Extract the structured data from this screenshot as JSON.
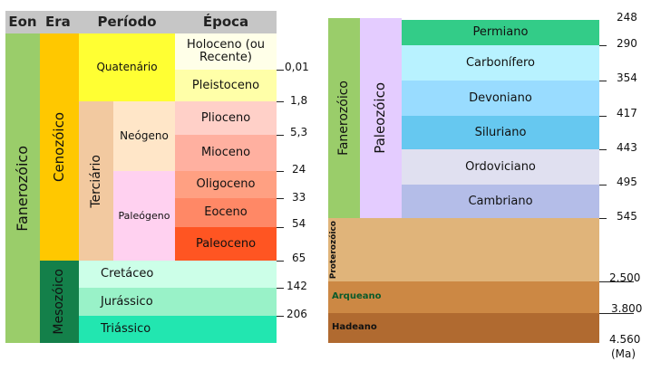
{
  "headers": {
    "eon": "Eon",
    "era": "Era",
    "period": "Período",
    "epoch": "Época"
  },
  "left": {
    "eon": "Fanerozóico",
    "era_cenozoic": "Cenozóico",
    "era_mesozoic": "Mesozóico",
    "quaternary": "Quatenário",
    "tertiary": "Terciário",
    "neogene": "Neógeno",
    "paleogene": "Paleógeno",
    "holocene": "Holoceno (ou Recente)",
    "pleistocene": "Pleistoceno",
    "pliocene": "Plioceno",
    "miocene": "Mioceno",
    "oligocene": "Oligoceno",
    "eocene": "Eoceno",
    "paleocene": "Paleoceno",
    "cretaceous": "Cretáceo",
    "jurassic": "Jurássico",
    "triassic": "Triássico"
  },
  "left_ages": [
    "0,01",
    "1,8",
    "5,3",
    "24",
    "33",
    "54",
    "65",
    "142",
    "206"
  ],
  "right": {
    "eon_phanerozoic": "Fanerozóico",
    "era_paleozoic": "Paleozóico",
    "permian": "Permiano",
    "carboniferous": "Carbonífero",
    "devonian": "Devoniano",
    "silurian": "Siluriano",
    "ordovician": "Ordoviciano",
    "cambrian": "Cambriano",
    "proterozoic": "Proterozóico",
    "archean": "Arqueano",
    "hadean": "Hadeano"
  },
  "right_ages": [
    "248",
    "290",
    "354",
    "417",
    "443",
    "495",
    "545",
    "2.500",
    "3.800",
    "4.560"
  ],
  "unit": "(Ma)",
  "colors": {
    "header": "#c6c6c6",
    "fanerozoico": "#9acd6a",
    "cenozoico": "#ffc800",
    "quaternario": "#ffff33",
    "holoceno": "#ffffe8",
    "pleistoceno": "#ffffa8",
    "terciario": "#f2c9a0",
    "neogeno": "#ffe6c8",
    "paleogeno": "#ffd1f0",
    "plioceno": "#ffd0c8",
    "mioceno": "#ffb0a0",
    "oligoceno": "#ffa082",
    "eoceno": "#ff8866",
    "paleoceno": "#ff5522",
    "mesozoico": "#14804a",
    "cretaceo": "#ccffe8",
    "jurassico": "#99f2c8",
    "triassico": "#22e6b0",
    "paleozoico": "#e4ccff",
    "permiano": "#33cc88",
    "carbonifero": "#b8f2ff",
    "devoniano": "#99dcff",
    "siluriano": "#66c8f0",
    "ordoviciano": "#e0e0f0",
    "cambriano": "#b4bde8",
    "proterozoico": "#e0b47a",
    "arqueano": "#cc8844",
    "hadeano": "#b06a30"
  }
}
